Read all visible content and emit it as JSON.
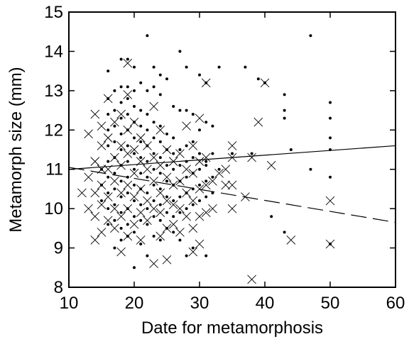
{
  "chart_data": {
    "type": "scatter",
    "title": "",
    "xlabel": "Date for metamorphosis",
    "ylabel": "Metamorph size (mm)",
    "xlim": [
      10,
      60
    ],
    "ylim": [
      8,
      15
    ],
    "xticks": [
      10,
      20,
      30,
      40,
      50,
      60
    ],
    "yticks": [
      8,
      9,
      10,
      11,
      12,
      13,
      14,
      15
    ],
    "grid": false,
    "legend": "none",
    "series": [
      {
        "marker": "dot",
        "color": "#000000",
        "points": [
          [
            22,
            14.4
          ],
          [
            47,
            14.4
          ],
          [
            27,
            14.0
          ],
          [
            18,
            13.8
          ],
          [
            19,
            13.8
          ],
          [
            28,
            13.6
          ],
          [
            30,
            13.4
          ],
          [
            33,
            13.6
          ],
          [
            37,
            13.6
          ],
          [
            23,
            13.6
          ],
          [
            24,
            13.4
          ],
          [
            25,
            13.3
          ],
          [
            31,
            13.2
          ],
          [
            16,
            13.5
          ],
          [
            20,
            13.6
          ],
          [
            39,
            13.3
          ],
          [
            40,
            13.2
          ],
          [
            43,
            12.9
          ],
          [
            50,
            12.7
          ],
          [
            17,
            13.0
          ],
          [
            18,
            13.1
          ],
          [
            19,
            13.1
          ],
          [
            20,
            13.0
          ],
          [
            21,
            13.2
          ],
          [
            22,
            13.0
          ],
          [
            23,
            13.1
          ],
          [
            24,
            12.9
          ],
          [
            26,
            12.6
          ],
          [
            27,
            12.5
          ],
          [
            28,
            12.5
          ],
          [
            29,
            12.4
          ],
          [
            31,
            12.2
          ],
          [
            32,
            12.1
          ],
          [
            30,
            12.0
          ],
          [
            29,
            11.7
          ],
          [
            43,
            12.5
          ],
          [
            43,
            12.3
          ],
          [
            50,
            12.3
          ],
          [
            50,
            11.8
          ],
          [
            50,
            11.5
          ],
          [
            35,
            11.4
          ],
          [
            38,
            11.4
          ],
          [
            44,
            11.5
          ],
          [
            31,
            11.2
          ],
          [
            33,
            11.0
          ],
          [
            47,
            11.0
          ],
          [
            50,
            10.8
          ],
          [
            41,
            9.8
          ],
          [
            43,
            9.4
          ],
          [
            50,
            9.1
          ],
          [
            27,
            9.2
          ],
          [
            29,
            9.0
          ],
          [
            31,
            8.8
          ],
          [
            28,
            8.8
          ],
          [
            20,
            8.5
          ],
          [
            22,
            8.8
          ],
          [
            17,
            9.0
          ],
          [
            18,
            9.2
          ],
          [
            19,
            9.3
          ],
          [
            21,
            9.1
          ],
          [
            23,
            9.3
          ],
          [
            24,
            9.2
          ],
          [
            25,
            9.5
          ],
          [
            26,
            9.4
          ],
          [
            15,
            10.2
          ],
          [
            15,
            10.6
          ],
          [
            15,
            11.0
          ],
          [
            16,
            9.6
          ],
          [
            16,
            10.0
          ],
          [
            16,
            10.4
          ],
          [
            16,
            10.8
          ],
          [
            16,
            11.2
          ],
          [
            16,
            11.6
          ],
          [
            16,
            12.0
          ],
          [
            16,
            12.4
          ],
          [
            16,
            12.8
          ],
          [
            17,
            9.7
          ],
          [
            17,
            10.1
          ],
          [
            17,
            10.5
          ],
          [
            17,
            10.9
          ],
          [
            17,
            11.3
          ],
          [
            17,
            11.7
          ],
          [
            17,
            12.1
          ],
          [
            17,
            12.5
          ],
          [
            18,
            9.5
          ],
          [
            18,
            9.9
          ],
          [
            18,
            10.3
          ],
          [
            18,
            10.7
          ],
          [
            18,
            11.1
          ],
          [
            18,
            11.5
          ],
          [
            18,
            11.9
          ],
          [
            18,
            12.3
          ],
          [
            18,
            12.7
          ],
          [
            19,
            9.6
          ],
          [
            19,
            10.0
          ],
          [
            19,
            10.4
          ],
          [
            19,
            10.8
          ],
          [
            19,
            11.2
          ],
          [
            19,
            11.6
          ],
          [
            19,
            12.0
          ],
          [
            19,
            12.4
          ],
          [
            19,
            12.8
          ],
          [
            20,
            9.4
          ],
          [
            20,
            9.8
          ],
          [
            20,
            10.2
          ],
          [
            20,
            10.6
          ],
          [
            20,
            11.0
          ],
          [
            20,
            11.4
          ],
          [
            20,
            11.8
          ],
          [
            20,
            12.2
          ],
          [
            20,
            12.6
          ],
          [
            21,
            9.7
          ],
          [
            21,
            10.1
          ],
          [
            21,
            10.5
          ],
          [
            21,
            10.9
          ],
          [
            21,
            11.3
          ],
          [
            21,
            11.7
          ],
          [
            21,
            12.1
          ],
          [
            21,
            12.5
          ],
          [
            22,
            9.6
          ],
          [
            22,
            10.0
          ],
          [
            22,
            10.4
          ],
          [
            22,
            10.8
          ],
          [
            22,
            11.2
          ],
          [
            22,
            11.6
          ],
          [
            22,
            12.0
          ],
          [
            22,
            12.4
          ],
          [
            23,
            9.8
          ],
          [
            23,
            10.2
          ],
          [
            23,
            10.6
          ],
          [
            23,
            11.0
          ],
          [
            23,
            11.4
          ],
          [
            23,
            11.8
          ],
          [
            23,
            12.2
          ],
          [
            24,
            9.7
          ],
          [
            24,
            10.1
          ],
          [
            24,
            10.5
          ],
          [
            24,
            10.9
          ],
          [
            24,
            11.3
          ],
          [
            24,
            11.7
          ],
          [
            24,
            12.1
          ],
          [
            25,
            9.9
          ],
          [
            25,
            10.3
          ],
          [
            25,
            10.7
          ],
          [
            25,
            11.1
          ],
          [
            25,
            11.5
          ],
          [
            25,
            11.9
          ],
          [
            26,
            9.8
          ],
          [
            26,
            10.2
          ],
          [
            26,
            10.6
          ],
          [
            26,
            11.0
          ],
          [
            26,
            11.4
          ],
          [
            26,
            11.8
          ],
          [
            27,
            9.9
          ],
          [
            27,
            10.3
          ],
          [
            27,
            10.7
          ],
          [
            27,
            11.1
          ],
          [
            27,
            11.5
          ],
          [
            28,
            10.0
          ],
          [
            28,
            10.4
          ],
          [
            28,
            10.8
          ],
          [
            28,
            11.2
          ],
          [
            28,
            11.6
          ],
          [
            29,
            10.1
          ],
          [
            29,
            10.5
          ],
          [
            29,
            10.9
          ],
          [
            29,
            11.3
          ],
          [
            30,
            10.2
          ],
          [
            30,
            10.6
          ],
          [
            30,
            11.0
          ],
          [
            30,
            11.4
          ],
          [
            31,
            10.3
          ],
          [
            31,
            10.7
          ],
          [
            31,
            11.1
          ],
          [
            32,
            10.4
          ],
          [
            32,
            10.8
          ],
          [
            32,
            11.4
          ]
        ]
      },
      {
        "marker": "x",
        "color": "#000000",
        "points": [
          [
            12,
            10.4
          ],
          [
            13,
            11.9
          ],
          [
            13,
            10.0
          ],
          [
            13,
            10.8
          ],
          [
            14,
            12.4
          ],
          [
            14,
            9.2
          ],
          [
            14,
            10.4
          ],
          [
            14,
            11.2
          ],
          [
            14,
            9.8
          ],
          [
            15,
            12.1
          ],
          [
            15,
            9.4
          ],
          [
            15,
            10.1
          ],
          [
            15,
            10.6
          ],
          [
            15,
            11.0
          ],
          [
            15,
            11.6
          ],
          [
            16,
            12.8
          ],
          [
            16,
            9.7
          ],
          [
            16,
            10.3
          ],
          [
            16,
            11.0
          ],
          [
            16,
            11.8
          ],
          [
            17,
            9.5
          ],
          [
            17,
            10.0
          ],
          [
            17,
            10.7
          ],
          [
            17,
            11.3
          ],
          [
            17,
            12.2
          ],
          [
            18,
            8.9
          ],
          [
            18,
            9.8
          ],
          [
            18,
            10.4
          ],
          [
            18,
            11.1
          ],
          [
            18,
            11.6
          ],
          [
            18,
            12.4
          ],
          [
            19,
            13.7
          ],
          [
            19,
            9.3
          ],
          [
            19,
            10.0
          ],
          [
            19,
            10.6
          ],
          [
            19,
            11.4
          ],
          [
            19,
            12.0
          ],
          [
            19,
            12.9
          ],
          [
            20,
            9.6
          ],
          [
            20,
            10.3
          ],
          [
            20,
            10.9
          ],
          [
            20,
            11.5
          ],
          [
            20,
            12.2
          ],
          [
            21,
            9.2
          ],
          [
            21,
            9.9
          ],
          [
            21,
            10.5
          ],
          [
            21,
            11.2
          ],
          [
            21,
            11.8
          ],
          [
            22,
            9.7
          ],
          [
            22,
            10.2
          ],
          [
            22,
            11.0
          ],
          [
            22,
            11.6
          ],
          [
            23,
            8.6
          ],
          [
            23,
            10.0
          ],
          [
            23,
            10.7
          ],
          [
            23,
            11.3
          ],
          [
            23,
            12.6
          ],
          [
            24,
            9.3
          ],
          [
            24,
            9.9
          ],
          [
            24,
            10.4
          ],
          [
            24,
            11.1
          ],
          [
            24,
            12.0
          ],
          [
            25,
            8.7
          ],
          [
            25,
            9.5
          ],
          [
            25,
            10.2
          ],
          [
            25,
            10.8
          ],
          [
            25,
            11.5
          ],
          [
            26,
            9.6
          ],
          [
            26,
            10.1
          ],
          [
            26,
            10.6
          ],
          [
            26,
            11.2
          ],
          [
            27,
            9.4
          ],
          [
            27,
            10.0
          ],
          [
            27,
            10.7
          ],
          [
            27,
            11.4
          ],
          [
            28,
            9.8
          ],
          [
            28,
            10.4
          ],
          [
            28,
            11.0
          ],
          [
            28,
            12.1
          ],
          [
            29,
            8.9
          ],
          [
            29,
            9.5
          ],
          [
            29,
            10.2
          ],
          [
            29,
            10.9
          ],
          [
            29,
            11.6
          ],
          [
            30,
            9.1
          ],
          [
            30,
            9.8
          ],
          [
            30,
            10.5
          ],
          [
            30,
            11.2
          ],
          [
            30,
            12.3
          ],
          [
            31,
            13.2
          ],
          [
            31,
            9.9
          ],
          [
            31,
            10.6
          ],
          [
            31,
            11.3
          ],
          [
            32,
            10.0
          ],
          [
            32,
            10.7
          ],
          [
            33,
            10.9
          ],
          [
            34,
            10.6
          ],
          [
            34,
            11.0
          ],
          [
            35,
            10.0
          ],
          [
            35,
            10.6
          ],
          [
            35,
            11.3
          ],
          [
            35,
            11.6
          ],
          [
            37,
            10.3
          ],
          [
            38,
            11.3
          ],
          [
            39,
            12.2
          ],
          [
            40,
            13.2
          ],
          [
            41,
            11.1
          ],
          [
            44,
            9.2
          ],
          [
            38,
            8.2
          ],
          [
            50,
            10.2
          ],
          [
            50,
            9.1
          ]
        ]
      }
    ],
    "lines": [
      {
        "style": "solid",
        "points": [
          [
            10,
            11.0
          ],
          [
            60,
            11.6
          ]
        ]
      },
      {
        "style": "dashed",
        "points": [
          [
            10,
            11.05
          ],
          [
            60,
            9.65
          ]
        ]
      }
    ]
  }
}
